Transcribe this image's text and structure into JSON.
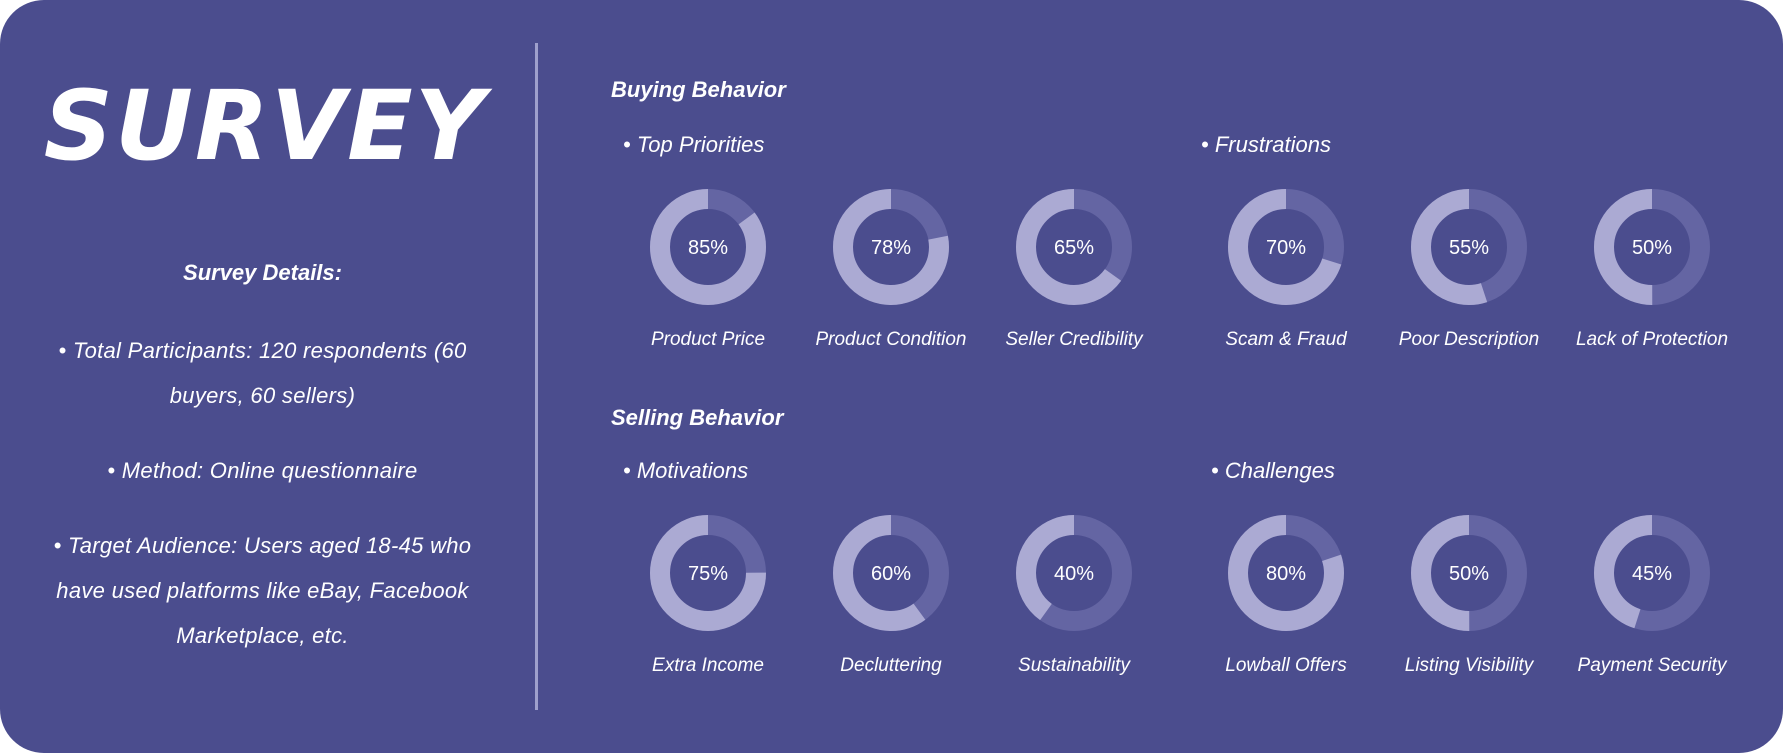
{
  "colors": {
    "background": "#4b4d8e",
    "ring_fill": "#abaad3",
    "ring_track": "#6465a3",
    "text": "#ffffff"
  },
  "left": {
    "title": "SURVEY",
    "details_heading": "Survey Details:",
    "details": [
      "• Total Participants: 120 respondents (60 buyers, 60 sellers)",
      "• Method: Online questionnaire",
      "• Target Audience: Users aged 18-45 who have used platforms like eBay, Facebook Marketplace, etc."
    ]
  },
  "chart_data": [
    {
      "type": "donut",
      "title": "Buying Behavior",
      "subtitle": "• Top Priorities",
      "categories": [
        "Product Price",
        "Product Condition",
        "Seller Credibility"
      ],
      "values": [
        85,
        78,
        65
      ],
      "value_labels": [
        "85%",
        "78%",
        "65%"
      ]
    },
    {
      "type": "donut",
      "title": "",
      "subtitle": "• Frustrations",
      "categories": [
        "Scam & Fraud",
        "Poor Description",
        "Lack of Protection"
      ],
      "values": [
        70,
        55,
        50
      ],
      "value_labels": [
        "70%",
        "55%",
        "50%"
      ]
    },
    {
      "type": "donut",
      "title": "Selling Behavior",
      "subtitle": "• Motivations",
      "categories": [
        "Extra Income",
        "Decluttering",
        "Sustainability"
      ],
      "values": [
        75,
        60,
        40
      ],
      "value_labels": [
        "75%",
        "60%",
        "40%"
      ]
    },
    {
      "type": "donut",
      "title": "",
      "subtitle": "• Challenges",
      "categories": [
        "Lowball Offers",
        "Listing Visibility",
        "Payment Security"
      ],
      "values": [
        80,
        50,
        45
      ],
      "value_labels": [
        "80%",
        "50%",
        "45%"
      ]
    }
  ]
}
